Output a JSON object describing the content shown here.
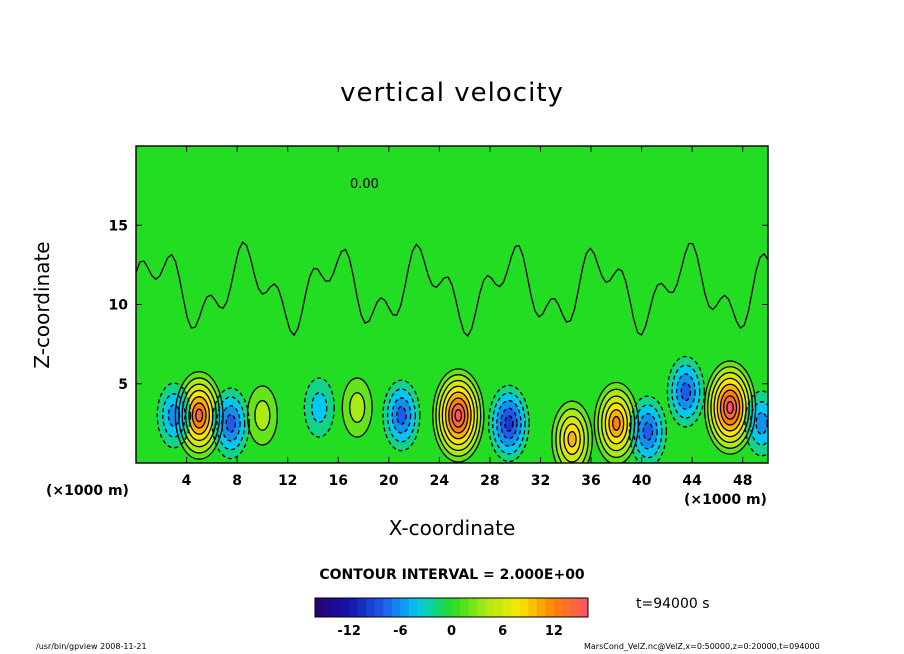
{
  "chart_data": {
    "type": "heatmap",
    "title": "vertical velocity",
    "xlabel": "X-coordinate",
    "ylabel": "Z-coordinate",
    "x_unit_left": "(×1000 m)",
    "x_unit_right": "(×1000 m)",
    "xlim": [
      0,
      50
    ],
    "ylim": [
      0,
      20
    ],
    "x_ticks": [
      4,
      8,
      12,
      16,
      20,
      24,
      28,
      32,
      36,
      40,
      44,
      48
    ],
    "y_ticks": [
      5,
      10,
      15
    ],
    "contour_interval": "CONTOUR INTERVAL = 2.000E+00",
    "contour_label": "0.00",
    "time_label": "t=94000 s",
    "colorbar": {
      "range": [
        -16,
        16
      ],
      "ticks": [
        -12,
        -6,
        0,
        6,
        12
      ]
    },
    "features": [
      {
        "x": 5,
        "z": 3,
        "value": 14
      },
      {
        "x": 3,
        "z": 3,
        "value": -6
      },
      {
        "x": 7.5,
        "z": 2.5,
        "value": -8
      },
      {
        "x": 10,
        "z": 3,
        "value": 4
      },
      {
        "x": 14.5,
        "z": 3.5,
        "value": -4
      },
      {
        "x": 17.5,
        "z": 3.5,
        "value": 4
      },
      {
        "x": 21,
        "z": 3,
        "value": -8
      },
      {
        "x": 25.5,
        "z": 3,
        "value": 16
      },
      {
        "x": 29.5,
        "z": 2.5,
        "value": -10
      },
      {
        "x": 34.5,
        "z": 1.5,
        "value": 10
      },
      {
        "x": 38,
        "z": 2.5,
        "value": 12
      },
      {
        "x": 40.5,
        "z": 2,
        "value": -8
      },
      {
        "x": 43.5,
        "z": 4.5,
        "value": -8
      },
      {
        "x": 47,
        "z": 3.5,
        "value": 16
      },
      {
        "x": 49.5,
        "z": 2.5,
        "value": -6
      }
    ]
  },
  "footer": {
    "left": "/usr/bin/gpview   2008-11-21",
    "right": "MarsCond_VelZ.nc@VelZ,x=0:50000,z=0:20000,t=094000"
  },
  "colors": {
    "background_field": "#22dd22",
    "positive_max": "#ff5577",
    "negative_max": "#330088",
    "contour": "#000000"
  }
}
